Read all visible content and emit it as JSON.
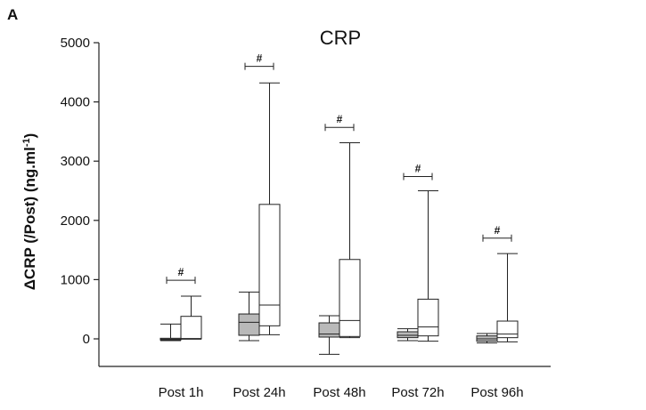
{
  "chart_data": {
    "type": "box",
    "panel_label": "A",
    "title": "CRP",
    "ylabel_main": "ΔCRP (/Post) (ng.ml",
    "ylabel_sup": "-1",
    "ylabel_end": ")",
    "ylim": [
      -500,
      5000
    ],
    "yticks": [
      0,
      1000,
      2000,
      3000,
      4000,
      5000
    ],
    "ytick_labels": [
      "0",
      "1000",
      "2000",
      "3000",
      "4000",
      "5000"
    ],
    "categories": [
      "Post 1h",
      "Post 24h",
      "Post 48h",
      "Post 72h",
      "Post 96h"
    ],
    "significance_marker": "#",
    "colors": {
      "grey_box": "#b9b9b9",
      "open_box": "#ffffff",
      "stroke": "#222222"
    },
    "series": [
      {
        "fill": "grey",
        "boxes": [
          {
            "whisker_low": -30,
            "q1": -20,
            "median": -5,
            "q3": 10,
            "whisker_high": 250
          },
          {
            "whisker_low": -30,
            "q1": 60,
            "median": 280,
            "q3": 420,
            "whisker_high": 790
          },
          {
            "whisker_low": -260,
            "q1": 30,
            "median": 80,
            "q3": 270,
            "whisker_high": 390
          },
          {
            "whisker_low": -30,
            "q1": 20,
            "median": 60,
            "q3": 120,
            "whisker_high": 170
          },
          {
            "whisker_low": -70,
            "q1": -40,
            "median": 0,
            "q3": 50,
            "whisker_high": 90
          }
        ]
      },
      {
        "fill": "open",
        "boxes": [
          {
            "whisker_low": -5,
            "q1": 0,
            "median": 5,
            "q3": 380,
            "whisker_high": 720
          },
          {
            "whisker_low": 70,
            "q1": 220,
            "median": 570,
            "q3": 2270,
            "whisker_high": 4320
          },
          {
            "whisker_low": 20,
            "q1": 40,
            "median": 310,
            "q3": 1340,
            "whisker_high": 3310
          },
          {
            "whisker_low": -40,
            "q1": 50,
            "median": 200,
            "q3": 670,
            "whisker_high": 2500
          },
          {
            "whisker_low": -50,
            "q1": 20,
            "median": 80,
            "q3": 300,
            "whisker_high": 1440
          }
        ]
      }
    ],
    "significance_y": [
      990,
      4600,
      3570,
      2740,
      1700
    ]
  }
}
